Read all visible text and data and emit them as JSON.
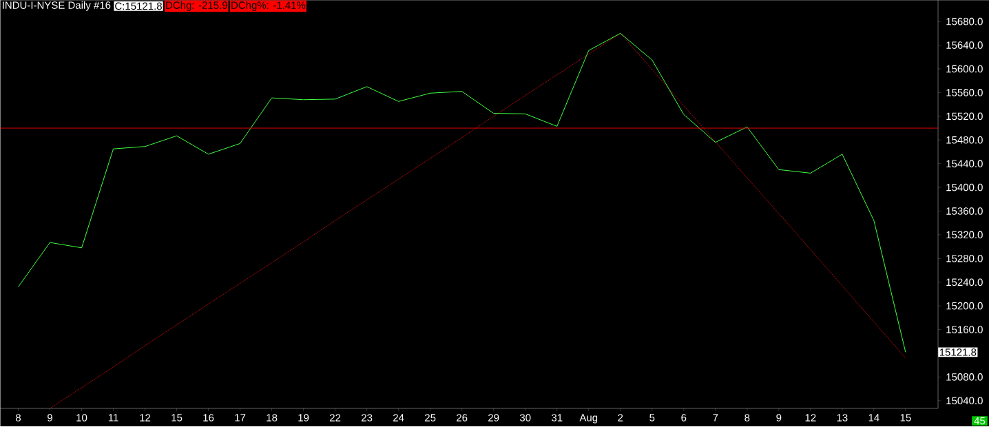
{
  "chart_data": {
    "type": "line",
    "title": "INDU-I-NYSE  Daily  #16",
    "categories": [
      "8",
      "9",
      "10",
      "11",
      "12",
      "15",
      "16",
      "17",
      "18",
      "19",
      "22",
      "23",
      "24",
      "25",
      "26",
      "29",
      "30",
      "31",
      "Aug",
      "2",
      "5",
      "6",
      "7",
      "8",
      "9",
      "12",
      "13",
      "14",
      "15"
    ],
    "series": [
      {
        "color": "#40ff40",
        "line_style": "solid",
        "values": [
          15232,
          15307,
          15298,
          15465,
          15469,
          15487,
          15456,
          15474,
          15551,
          15548,
          15549,
          15570,
          15545,
          15559,
          15562,
          15525,
          15524,
          15503,
          15631,
          15660,
          15615,
          15523,
          15476,
          15502,
          15430,
          15424,
          15456,
          15344,
          15121.8
        ]
      },
      {
        "color": "#e01010",
        "line_style": "dotted",
        "values": [
          null,
          15027,
          15062,
          15097,
          15133,
          15168,
          15203,
          15238,
          15273,
          15308,
          15344,
          15379,
          15414,
          15449,
          15484,
          15520,
          15555,
          15590,
          15625,
          15660,
          15599,
          15538,
          15477,
          15416,
          15356,
          15295,
          15234,
          15173,
          15112
        ]
      }
    ],
    "ylim": [
      15027,
      15716
    ],
    "yticks": [
      {
        "value": 15040,
        "label": "15040.0"
      },
      {
        "value": 15080,
        "label": "15080.0"
      },
      {
        "value": 15120,
        "label": null
      },
      {
        "value": 15160,
        "label": "15160.0"
      },
      {
        "value": 15200,
        "label": "15200.0"
      },
      {
        "value": 15240,
        "label": "15240.0"
      },
      {
        "value": 15280,
        "label": "15280.0"
      },
      {
        "value": 15320,
        "label": "15320.0"
      },
      {
        "value": 15360,
        "label": "15360.0"
      },
      {
        "value": 15400,
        "label": "15400.0"
      },
      {
        "value": 15440,
        "label": "15440.0"
      },
      {
        "value": 15480,
        "label": "15480.0"
      },
      {
        "value": 15520,
        "label": "15520.0"
      },
      {
        "value": 15560,
        "label": "15560.0"
      },
      {
        "value": 15600,
        "label": "15600.0"
      },
      {
        "value": 15640,
        "label": "15640.0"
      },
      {
        "value": 15680,
        "label": "15680.0"
      }
    ],
    "ref_lines": [
      {
        "axis": "y",
        "value": 15500,
        "color": "#e00000"
      }
    ],
    "grid": false,
    "annotations": [
      "C:15121.8",
      "DChg: -215.9",
      "DChg%: -1.41%",
      "15121.8",
      "45"
    ]
  }
}
